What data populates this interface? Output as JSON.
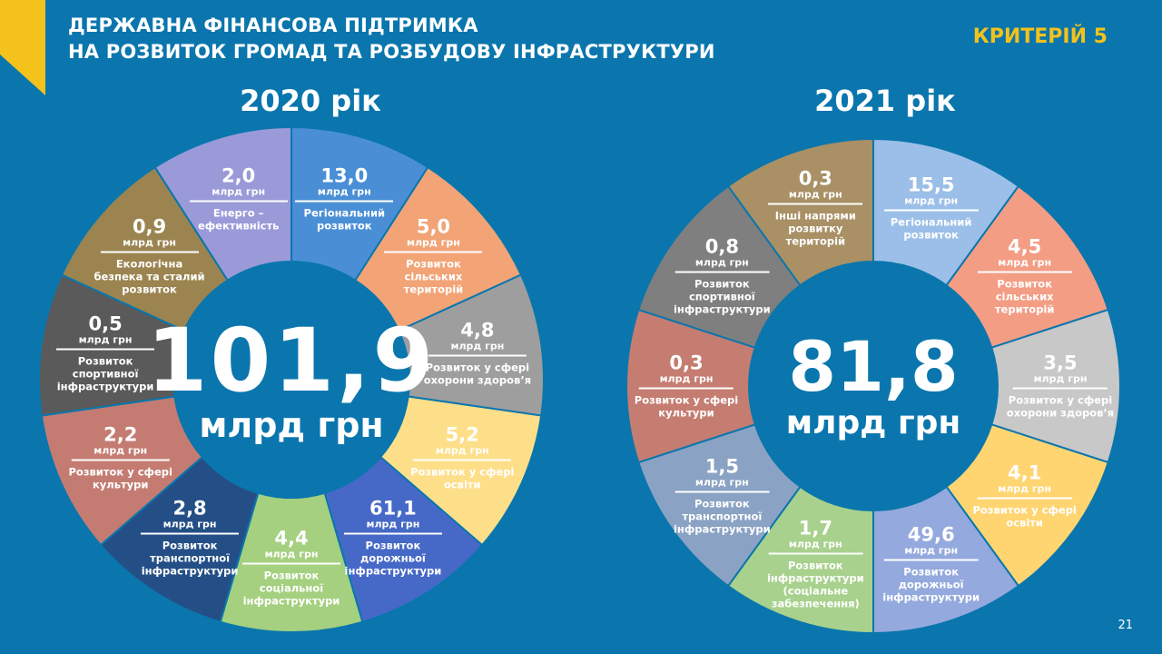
{
  "header": {
    "title_line1": "ДЕРЖАВНА ФІНАНСОВА  ПІДТРИМКА",
    "title_line2": "НА РОЗВИТОК ГРОМАД ТА РОЗБУДОВУ ІНФРАСТРУКТУРИ",
    "criteria": "КРИТЕРІЙ 5"
  },
  "page_number": "21",
  "colors": {
    "background": "#0a76ad",
    "accent": "#f4c21b"
  },
  "chart_data": [
    {
      "type": "pie",
      "variant": "donut",
      "title": "2020 рік",
      "total": "101,9",
      "total_unit": "млрд грн",
      "value_unit": "млрд грн",
      "slices_equal_width": true,
      "slices": [
        {
          "label": "Регіональний розвиток",
          "value": 13.0,
          "value_text": "13,0",
          "color": "#4a8fd6"
        },
        {
          "label": "Розвиток сільських територій",
          "value": 5.0,
          "value_text": "5,0",
          "color": "#f2a477"
        },
        {
          "label": "Розвиток у сфері охорони здоров’я",
          "value": 4.8,
          "value_text": "4,8",
          "color": "#9e9e9e"
        },
        {
          "label": "Розвиток у сфері освіти",
          "value": 5.2,
          "value_text": "5,2",
          "color": "#fddf8a"
        },
        {
          "label": "Розвиток дорожньої інфраструктури",
          "value": 61.1,
          "value_text": "61,1",
          "color": "#4669c7"
        },
        {
          "label": "Розвиток соціальної інфраструктури",
          "value": 4.4,
          "value_text": "4,4",
          "color": "#a5d07f"
        },
        {
          "label": "Розвиток транспортної інфраструктури",
          "value": 2.8,
          "value_text": "2,8",
          "color": "#244f86"
        },
        {
          "label": "Розвиток у сфері культури",
          "value": 2.2,
          "value_text": "2,2",
          "color": "#c47c72"
        },
        {
          "label": "Розвиток спортивної інфраструктури",
          "value": 0.5,
          "value_text": "0,5",
          "color": "#5a5a5a"
        },
        {
          "label": "Екологічна безпека та сталий розвиток",
          "value": 0.9,
          "value_text": "0,9",
          "color": "#9b8450"
        },
        {
          "label": "Енерго – ефективність",
          "value": 2.0,
          "value_text": "2,0",
          "color": "#9a9ad9"
        }
      ]
    },
    {
      "type": "pie",
      "variant": "donut",
      "title": "2021 рік",
      "total": "81,8",
      "total_unit": "млрд грн",
      "value_unit": "млрд грн",
      "slices_equal_width": true,
      "slices": [
        {
          "label": "Регіональний розвиток",
          "value": 15.5,
          "value_text": "15,5",
          "color": "#9bbfe8"
        },
        {
          "label": "Розвиток сільських територій",
          "value": 4.5,
          "value_text": "4,5",
          "color": "#f39d85"
        },
        {
          "label": "Розвиток у сфері охорони здоров’я",
          "value": 3.5,
          "value_text": "3,5",
          "color": "#c8c8c8"
        },
        {
          "label": "Розвиток у сфері освіти",
          "value": 4.1,
          "value_text": "4,1",
          "color": "#ffd572"
        },
        {
          "label": "Розвиток дорожньої інфраструктури",
          "value": 49.6,
          "value_text": "49,6",
          "color": "#94a9dd"
        },
        {
          "label": "Розвиток інфраструктури (соціальне забезпечення)",
          "value": 1.7,
          "value_text": "1,7",
          "color": "#a8d18d"
        },
        {
          "label": "Розвиток транспортної інфраструктури",
          "value": 1.5,
          "value_text": "1,5",
          "color": "#8aa2c3"
        },
        {
          "label": "Розвиток у сфері культури",
          "value": 0.3,
          "value_text": "0,3",
          "color": "#c57d72"
        },
        {
          "label": "Розвиток спортивної інфраструктури",
          "value": 0.8,
          "value_text": "0,8",
          "color": "#7f7f7f"
        },
        {
          "label": "Інші напрями розвитку територій",
          "value": 0.3,
          "value_text": "0,3",
          "color": "#a99065"
        }
      ]
    }
  ]
}
